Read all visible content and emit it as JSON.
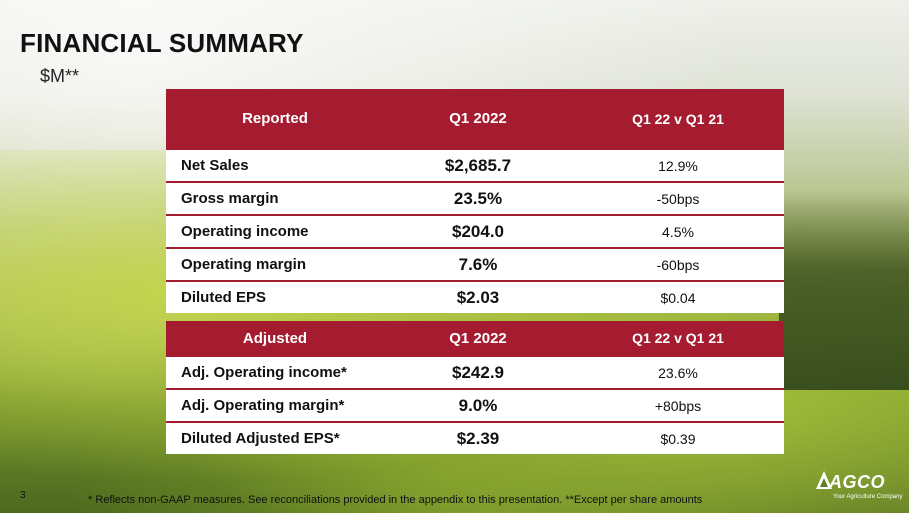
{
  "title": "FINANCIAL SUMMARY",
  "subtitle": "$M**",
  "reported": {
    "headers": [
      "Reported",
      "Q1 2022",
      "Q1 22 v Q1 21"
    ],
    "rows": [
      {
        "label": "Net Sales",
        "value": "$2,685.7",
        "change": "12.9%"
      },
      {
        "label": "Gross margin",
        "value": "23.5%",
        "change": "-50bps"
      },
      {
        "label": "Operating income",
        "value": "$204.0",
        "change": "4.5%"
      },
      {
        "label": "Operating margin",
        "value": "7.6%",
        "change": "-60bps"
      },
      {
        "label": "Diluted EPS",
        "value": "$2.03",
        "change": "$0.04"
      }
    ]
  },
  "adjusted": {
    "headers": [
      "Adjusted",
      "Q1 2022",
      "Q1 22 v Q1 21"
    ],
    "rows": [
      {
        "label": "Adj. Operating income*",
        "value": "$242.9",
        "change": "23.6%"
      },
      {
        "label": "Adj. Operating margin*",
        "value": "9.0%",
        "change": "+80bps"
      },
      {
        "label": "Diluted Adjusted EPS*",
        "value": "$2.39",
        "change": "$0.39"
      }
    ]
  },
  "page_number": "3",
  "footnote": "*  Reflects non-GAAP measures. See reconciliations provided in the appendix to this presentation.   **Except per share amounts",
  "logo": {
    "name": "AGCO",
    "tagline": "Your Agriculture Company"
  },
  "colors": {
    "header": "#a51c30",
    "text": "#111111"
  }
}
